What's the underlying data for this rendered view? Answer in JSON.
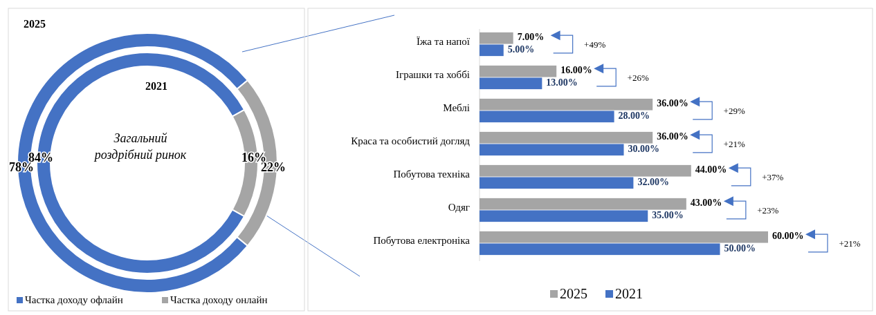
{
  "chart_data": [
    {
      "type": "donut",
      "categories": [
        "Частка доходу офлайн",
        "Частка доходу онлайн"
      ],
      "colors": [
        "#4472c4",
        "#a5a5a5"
      ],
      "legend": "bottom",
      "series": [
        {
          "name": "2025",
          "values": [
            78,
            22
          ],
          "value_labels": [
            "78%",
            "22%"
          ]
        },
        {
          "name": "2021",
          "values": [
            84,
            16
          ],
          "value_labels": [
            "84%",
            "16%"
          ]
        }
      ],
      "annotations": [
        "Загальний роздрібний ринок"
      ]
    },
    {
      "type": "bar",
      "orientation": "horizontal",
      "legend": "bottom",
      "categories": [
        "Їжа та напої",
        "Іграшки та хоббі",
        "Меблі",
        "Краса та особистий догляд",
        "Побутова техніка",
        "Одяг",
        "Побутова електроніка"
      ],
      "series": [
        {
          "name": "2025",
          "color": "#a5a5a5",
          "values": [
            7,
            16,
            36,
            36,
            44,
            43,
            60
          ],
          "value_labels": [
            "7.00%",
            "16.00%",
            "36.00%",
            "36.00%",
            "44.00%",
            "43.00%",
            "60.00%"
          ]
        },
        {
          "name": "2021",
          "color": "#4472c4",
          "values": [
            5,
            13,
            28,
            30,
            32,
            35,
            50
          ],
          "value_labels": [
            "5.00%",
            "13.00%",
            "28.00%",
            "30.00%",
            "32.00%",
            "35.00%",
            "50.00%"
          ]
        }
      ],
      "annotations": [
        "+49%",
        "+26%",
        "+29%",
        "+21%",
        "+37%",
        "+23%",
        "+21%"
      ]
    }
  ]
}
